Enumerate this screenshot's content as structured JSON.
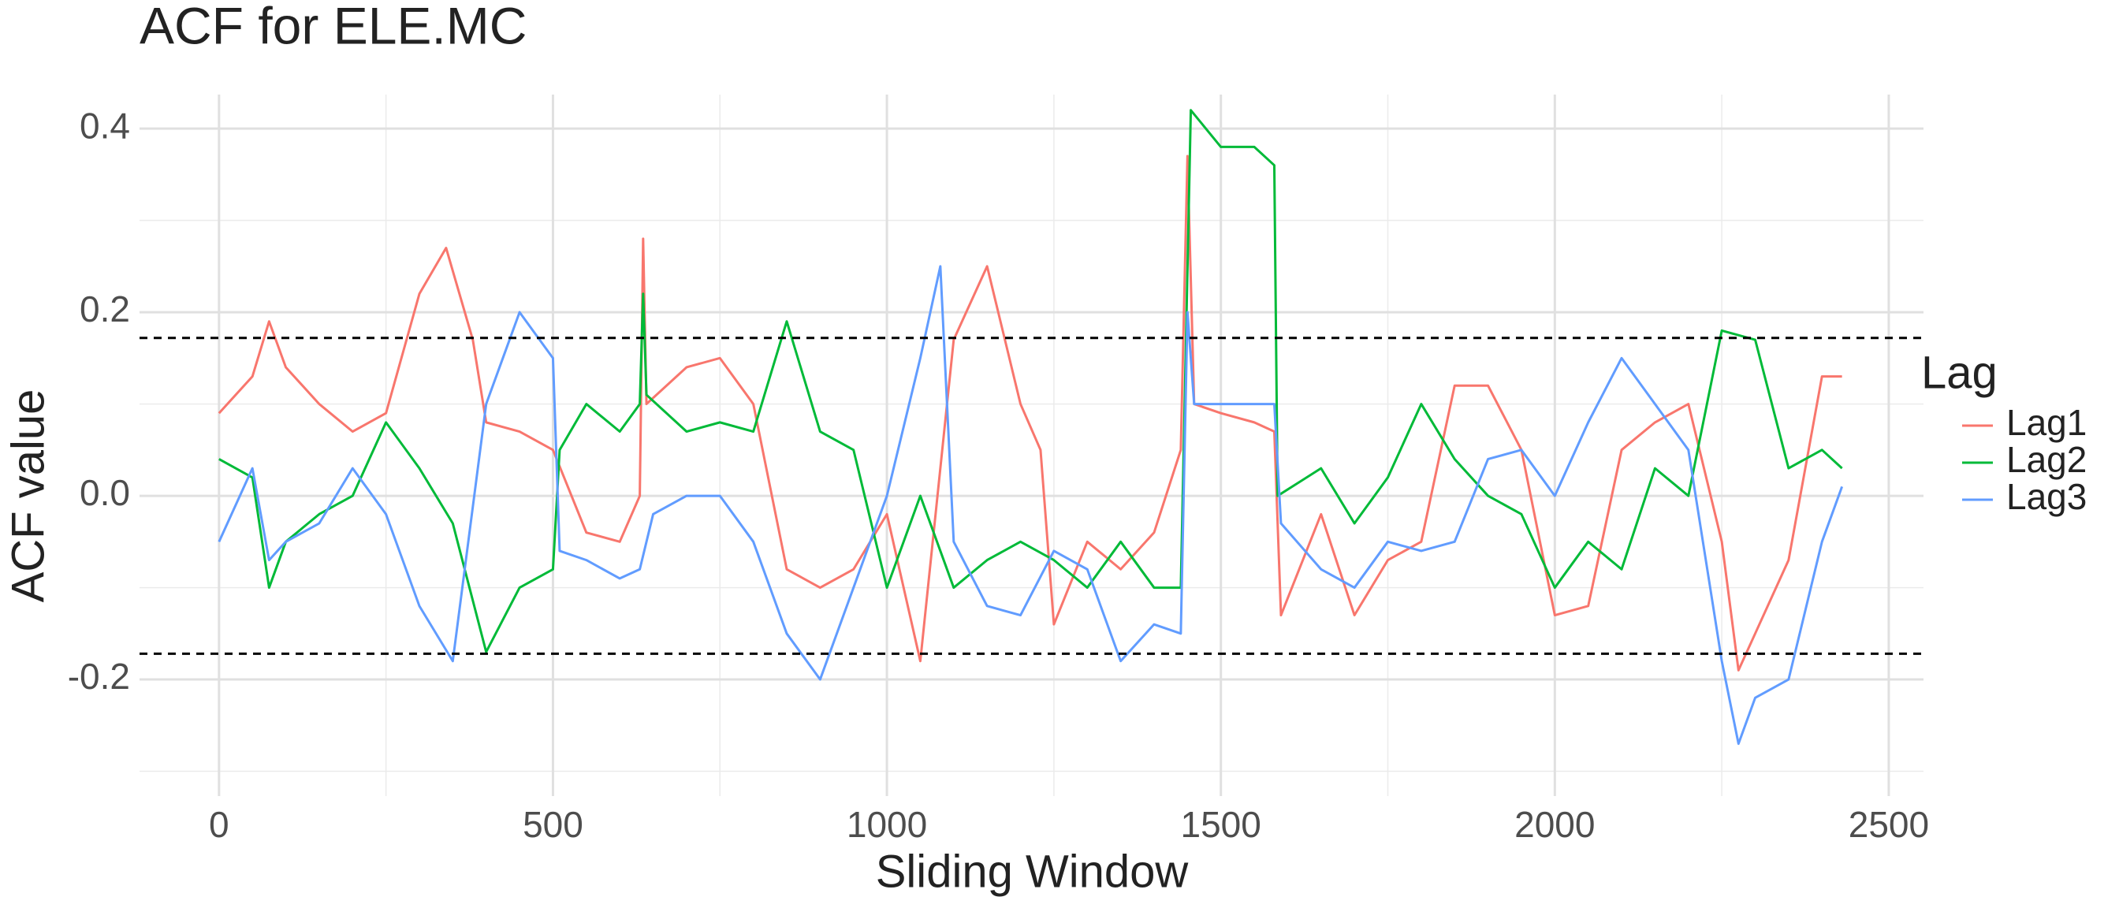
{
  "chart_data": {
    "type": "line",
    "title": "ACF for  ELE.MC",
    "x_label": "Sliding Window",
    "y_label": "ACF value",
    "legend_title": "Lag",
    "xlim": [
      -119,
      2552
    ],
    "ylim": [
      -0.327,
      0.437
    ],
    "xticks": [
      0,
      500,
      1000,
      1500,
      2000,
      2500
    ],
    "yticks": [
      {
        "value": -0.2,
        "label": "-0.2"
      },
      {
        "value": 0,
        "label": "0.0"
      },
      0.2,
      0.4
    ],
    "hlines": [
      0.172,
      -0.172
    ],
    "grid": true,
    "legend": "right",
    "series": [
      {
        "name": "Lag1",
        "color": "#f8766d",
        "x": [
          0,
          50,
          75,
          100,
          150,
          200,
          250,
          300,
          340,
          380,
          400,
          450,
          500,
          550,
          600,
          630,
          635,
          640,
          700,
          750,
          800,
          850,
          900,
          950,
          1000,
          1050,
          1100,
          1150,
          1200,
          1230,
          1250,
          1300,
          1350,
          1400,
          1440,
          1450,
          1460,
          1500,
          1550,
          1580,
          1590,
          1650,
          1700,
          1750,
          1800,
          1850,
          1900,
          1950,
          2000,
          2050,
          2100,
          2150,
          2200,
          2250,
          2275,
          2300,
          2350,
          2400,
          2430
        ],
        "values": [
          0.09,
          0.13,
          0.19,
          0.14,
          0.1,
          0.07,
          0.09,
          0.22,
          0.27,
          0.17,
          0.08,
          0.07,
          0.05,
          -0.04,
          -0.05,
          0.0,
          0.28,
          0.1,
          0.14,
          0.15,
          0.1,
          -0.08,
          -0.1,
          -0.08,
          -0.02,
          -0.18,
          0.17,
          0.25,
          0.1,
          0.05,
          -0.14,
          -0.05,
          -0.08,
          -0.04,
          0.05,
          0.37,
          0.1,
          0.09,
          0.08,
          0.07,
          -0.13,
          -0.02,
          -0.13,
          -0.07,
          -0.05,
          0.12,
          0.12,
          0.05,
          -0.13,
          -0.12,
          0.05,
          0.08,
          0.1,
          -0.05,
          -0.19,
          -0.15,
          -0.07,
          0.13,
          0.13
        ]
      },
      {
        "name": "Lag2",
        "color": "#00ba38",
        "x": [
          0,
          50,
          75,
          100,
          150,
          200,
          250,
          300,
          350,
          400,
          450,
          500,
          510,
          550,
          600,
          630,
          635,
          640,
          700,
          750,
          800,
          850,
          900,
          950,
          1000,
          1050,
          1100,
          1150,
          1200,
          1250,
          1300,
          1350,
          1400,
          1440,
          1455,
          1500,
          1550,
          1580,
          1585,
          1650,
          1700,
          1750,
          1800,
          1850,
          1900,
          1950,
          2000,
          2050,
          2100,
          2150,
          2200,
          2250,
          2300,
          2350,
          2400,
          2430
        ],
        "values": [
          0.04,
          0.02,
          -0.1,
          -0.05,
          -0.02,
          0.0,
          0.08,
          0.03,
          -0.03,
          -0.17,
          -0.1,
          -0.08,
          0.05,
          0.1,
          0.07,
          0.1,
          0.22,
          0.11,
          0.07,
          0.08,
          0.07,
          0.19,
          0.07,
          0.05,
          -0.1,
          0.0,
          -0.1,
          -0.07,
          -0.05,
          -0.07,
          -0.1,
          -0.05,
          -0.1,
          -0.1,
          0.42,
          0.38,
          0.38,
          0.36,
          0.0,
          0.03,
          -0.03,
          0.02,
          0.1,
          0.04,
          0.0,
          -0.02,
          -0.1,
          -0.05,
          -0.08,
          0.03,
          0.0,
          0.18,
          0.17,
          0.03,
          0.05,
          0.03
        ]
      },
      {
        "name": "Lag3",
        "color": "#619cff",
        "x": [
          0,
          50,
          75,
          100,
          150,
          200,
          250,
          300,
          350,
          400,
          450,
          500,
          510,
          550,
          600,
          630,
          650,
          700,
          750,
          800,
          850,
          900,
          950,
          1000,
          1050,
          1080,
          1100,
          1150,
          1200,
          1250,
          1300,
          1350,
          1400,
          1440,
          1450,
          1460,
          1500,
          1550,
          1580,
          1590,
          1650,
          1700,
          1750,
          1800,
          1850,
          1900,
          1950,
          2000,
          2050,
          2100,
          2150,
          2200,
          2250,
          2275,
          2300,
          2350,
          2400,
          2430
        ],
        "values": [
          -0.05,
          0.03,
          -0.07,
          -0.05,
          -0.03,
          0.03,
          -0.02,
          -0.12,
          -0.18,
          0.1,
          0.2,
          0.15,
          -0.06,
          -0.07,
          -0.09,
          -0.08,
          -0.02,
          0.0,
          0.0,
          -0.05,
          -0.15,
          -0.2,
          -0.1,
          0.0,
          0.15,
          0.25,
          -0.05,
          -0.12,
          -0.13,
          -0.06,
          -0.08,
          -0.18,
          -0.14,
          -0.15,
          0.2,
          0.1,
          0.1,
          0.1,
          0.1,
          -0.03,
          -0.08,
          -0.1,
          -0.05,
          -0.06,
          -0.05,
          0.04,
          0.05,
          0.0,
          0.08,
          0.15,
          0.1,
          0.05,
          -0.18,
          -0.27,
          -0.22,
          -0.2,
          -0.05,
          0.01
        ]
      }
    ]
  }
}
